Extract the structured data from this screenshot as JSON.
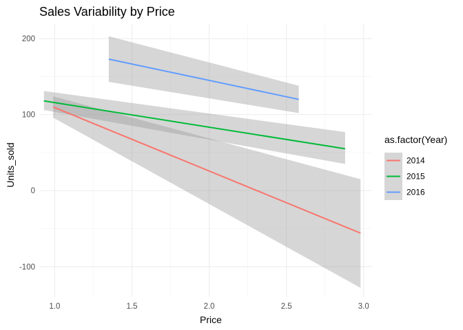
{
  "chart_data": {
    "type": "line",
    "title": "Sales Variability by Price",
    "xlabel": "Price",
    "ylabel": "Units_sold",
    "xlim": [
      0.9,
      3.05
    ],
    "ylim": [
      -140,
      220
    ],
    "x_ticks": [
      1.0,
      1.5,
      2.0,
      2.5,
      3.0
    ],
    "x_tick_labels": [
      "1.0",
      "1.5",
      "2.0",
      "2.5",
      "3.0"
    ],
    "y_ticks": [
      -100,
      0,
      100,
      200
    ],
    "y_tick_labels": [
      "-100",
      "0",
      "100",
      "200"
    ],
    "grid": true,
    "legend": {
      "title": "as.factor(Year)",
      "position": "right"
    },
    "ribbon_color": "#999999",
    "series": [
      {
        "name": "2014",
        "color": "#F8766D",
        "x": [
          0.99,
          2.98
        ],
        "y": [
          110,
          -56
        ],
        "ci_lower": [
          96,
          -128
        ],
        "ci_upper": [
          124,
          15
        ]
      },
      {
        "name": "2015",
        "color": "#00BA38",
        "x": [
          0.93,
          2.88
        ],
        "y": [
          118,
          55
        ],
        "ci_lower": [
          106,
          35
        ],
        "ci_upper": [
          131,
          77
        ]
      },
      {
        "name": "2016",
        "color": "#619CFF",
        "x": [
          1.35,
          2.58
        ],
        "y": [
          173,
          120
        ],
        "ci_lower": [
          143,
          102
        ],
        "ci_upper": [
          203,
          138
        ]
      }
    ]
  }
}
